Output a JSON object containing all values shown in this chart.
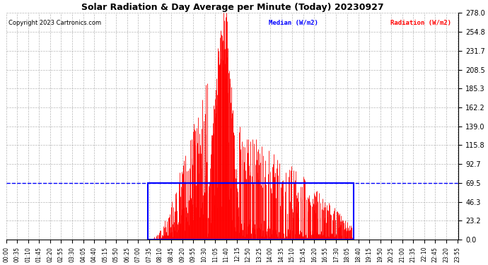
{
  "title": "Solar Radiation & Day Average per Minute (Today) 20230927",
  "copyright": "Copyright 2023 Cartronics.com",
  "legend_median": "Median (W/m2)",
  "legend_radiation": "Radiation (W/m2)",
  "yticks": [
    0.0,
    23.2,
    46.3,
    69.5,
    92.7,
    115.8,
    139.0,
    162.2,
    185.3,
    208.5,
    231.7,
    254.8,
    278.0
  ],
  "ymax": 278.0,
  "ymin": 0.0,
  "total_minutes": 1440,
  "sunrise_minute": 450,
  "sunset_minute": 1105,
  "median_value": 69.5,
  "bar_color": "#ff0000",
  "median_color": "#0000ff",
  "box_color": "#0000ff",
  "background_color": "#ffffff",
  "grid_color": "#b0b0b0",
  "title_color": "#000000",
  "copyright_color": "#000000",
  "xtick_labels": [
    "00:00",
    "00:35",
    "01:10",
    "01:45",
    "02:20",
    "02:55",
    "03:30",
    "04:05",
    "04:40",
    "05:15",
    "05:50",
    "06:25",
    "07:00",
    "07:35",
    "08:10",
    "08:45",
    "09:20",
    "09:55",
    "10:30",
    "11:05",
    "11:40",
    "12:15",
    "12:50",
    "13:25",
    "14:00",
    "14:35",
    "15:10",
    "15:45",
    "16:20",
    "16:55",
    "17:30",
    "18:05",
    "18:40",
    "19:15",
    "19:50",
    "20:25",
    "21:00",
    "21:35",
    "22:10",
    "22:45",
    "23:20",
    "23:55"
  ],
  "xtick_minutes": [
    0,
    35,
    70,
    105,
    140,
    175,
    210,
    245,
    280,
    315,
    350,
    385,
    420,
    455,
    490,
    525,
    560,
    595,
    630,
    665,
    700,
    735,
    770,
    805,
    840,
    875,
    910,
    945,
    980,
    1015,
    1050,
    1085,
    1120,
    1155,
    1190,
    1225,
    1260,
    1295,
    1330,
    1365,
    1400,
    1435
  ]
}
